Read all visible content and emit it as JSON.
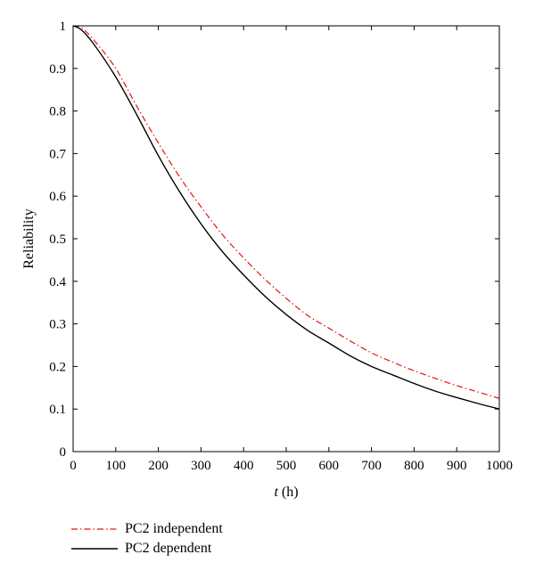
{
  "chart_data": {
    "type": "line",
    "title": "",
    "xlabel_var": "t",
    "xlabel_unit": " (h)",
    "ylabel": "Reliability",
    "xlim": [
      0,
      1000
    ],
    "ylim": [
      0,
      1
    ],
    "x_ticks": [
      0,
      100,
      200,
      300,
      400,
      500,
      600,
      700,
      800,
      900,
      1000
    ],
    "y_ticks": [
      0,
      0.1,
      0.2,
      0.3,
      0.4,
      0.5,
      0.6,
      0.7,
      0.8,
      0.9,
      1
    ],
    "grid": false,
    "legend_position": "bottom-left, below plot",
    "x": [
      0,
      20,
      50,
      100,
      150,
      200,
      250,
      300,
      350,
      400,
      450,
      500,
      550,
      600,
      650,
      700,
      750,
      800,
      850,
      900,
      950,
      1000
    ],
    "series": [
      {
        "name": "PC2 independent",
        "color": "#e3130b",
        "style": "dash-dot",
        "values": [
          1.0,
          0.995,
          0.965,
          0.9,
          0.81,
          0.725,
          0.645,
          0.575,
          0.51,
          0.455,
          0.405,
          0.36,
          0.32,
          0.29,
          0.26,
          0.232,
          0.21,
          0.19,
          0.172,
          0.155,
          0.14,
          0.125
        ]
      },
      {
        "name": "PC2 dependent",
        "color": "#000000",
        "style": "solid",
        "values": [
          1.0,
          0.99,
          0.955,
          0.88,
          0.79,
          0.695,
          0.61,
          0.535,
          0.47,
          0.415,
          0.365,
          0.322,
          0.285,
          0.255,
          0.225,
          0.2,
          0.18,
          0.16,
          0.142,
          0.127,
          0.113,
          0.1
        ]
      }
    ]
  }
}
